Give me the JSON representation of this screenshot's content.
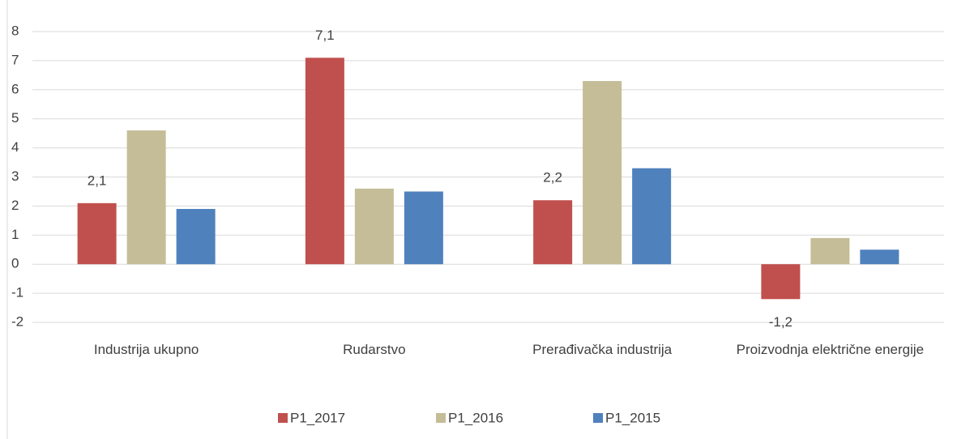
{
  "chart_data": {
    "type": "bar",
    "categories": [
      "Industrija ukupno",
      "Rudarstvo",
      "Prerađivačka industrija",
      "Proizvodnja električne energije"
    ],
    "series": [
      {
        "name": "P1_2017",
        "color": "#c0504d",
        "values": [
          2.1,
          7.1,
          2.2,
          -1.2
        ],
        "value_labels": [
          "2,1",
          "7,1",
          "2,2",
          "-1,2"
        ]
      },
      {
        "name": "P1_2016",
        "color": "#c4bd97",
        "values": [
          4.6,
          2.6,
          6.3,
          0.9
        ]
      },
      {
        "name": "P1_2015",
        "color": "#4f81bd",
        "values": [
          1.9,
          2.5,
          3.3,
          0.5
        ]
      }
    ],
    "ylim": [
      -2,
      8
    ],
    "yticks": [
      -2,
      -1,
      0,
      1,
      2,
      3,
      4,
      5,
      6,
      7,
      8
    ],
    "grid": true,
    "legend": "bottom"
  }
}
